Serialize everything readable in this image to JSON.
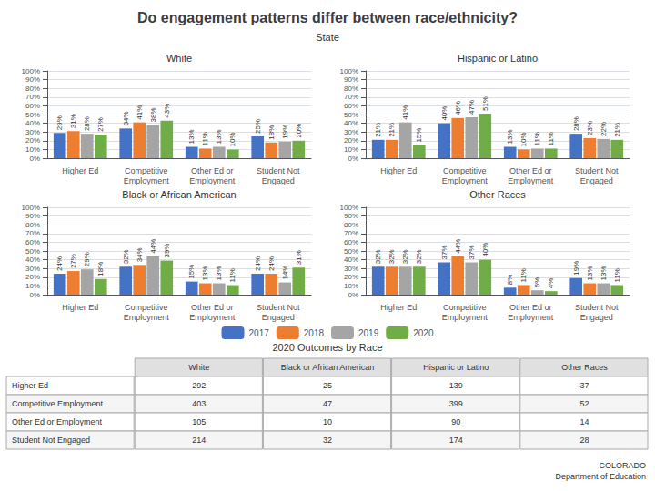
{
  "title": "Do engagement patterns differ between race/ethnicity?",
  "subtitle": "State",
  "chart_data": [
    {
      "type": "bar",
      "title": "White",
      "categories": [
        "Higher Ed",
        "Competitive\nEmployment",
        "Other Ed or\nEmployment",
        "Student Not\nEngaged"
      ],
      "series": [
        {
          "name": "2017",
          "color": "#4472c4",
          "values": [
            29,
            34,
            13,
            25
          ],
          "value_labels": [
            "29%",
            "34%",
            "13%",
            "25%"
          ]
        },
        {
          "name": "2018",
          "color": "#ed7d31",
          "values": [
            31,
            41,
            11,
            18
          ],
          "value_labels": [
            "31%",
            "41%",
            "11%",
            "18%"
          ]
        },
        {
          "name": "2019",
          "color": "#a5a5a5",
          "values": [
            28,
            38,
            13,
            19
          ],
          "value_labels": [
            "28%",
            "38%",
            "13%",
            "19%"
          ]
        },
        {
          "name": "2020",
          "color": "#70ad47",
          "values": [
            27,
            43,
            10,
            20
          ],
          "value_labels": [
            "27%",
            "43%",
            "10%",
            "20%"
          ]
        }
      ],
      "ylim": [
        0,
        100
      ],
      "yticks": [
        {
          "value": 0,
          "label": "0%"
        },
        {
          "value": 10,
          "label": "10%"
        },
        {
          "value": 20,
          "label": "20%"
        },
        {
          "value": 30,
          "label": "30%"
        },
        {
          "value": 40,
          "label": "40%"
        },
        {
          "value": 50,
          "label": "50%"
        },
        {
          "value": 60,
          "label": "60%"
        },
        {
          "value": 70,
          "label": "70%"
        },
        {
          "value": 80,
          "label": "80%"
        },
        {
          "value": 90,
          "label": "90%"
        },
        {
          "value": 100,
          "label": "100%"
        }
      ],
      "grid": true,
      "data_labels": true,
      "legend": "bottom"
    },
    {
      "type": "bar",
      "title": "Hispanic or Latino",
      "categories": [
        "Higher Ed",
        "Competitive\nEmployment",
        "Other Ed or\nEmployment",
        "Student Not\nEngaged"
      ],
      "series": [
        {
          "name": "2017",
          "color": "#4472c4",
          "values": [
            21,
            40,
            13,
            28
          ],
          "value_labels": [
            "21%",
            "40%",
            "13%",
            "28%"
          ]
        },
        {
          "name": "2018",
          "color": "#ed7d31",
          "values": [
            21,
            46,
            10,
            23
          ],
          "value_labels": [
            "21%",
            "46%",
            "10%",
            "23%"
          ]
        },
        {
          "name": "2019",
          "color": "#a5a5a5",
          "values": [
            41,
            47,
            11,
            22
          ],
          "value_labels": [
            "41%",
            "47%",
            "11%",
            "22%"
          ]
        },
        {
          "name": "2020",
          "color": "#70ad47",
          "values": [
            15,
            51,
            11,
            21
          ],
          "value_labels": [
            "15%",
            "51%",
            "11%",
            "21%"
          ]
        }
      ],
      "ylim": [
        0,
        100
      ],
      "yticks": [
        {
          "value": 0,
          "label": "0%"
        },
        {
          "value": 10,
          "label": "10%"
        },
        {
          "value": 20,
          "label": "20%"
        },
        {
          "value": 30,
          "label": "30%"
        },
        {
          "value": 40,
          "label": "40%"
        },
        {
          "value": 50,
          "label": "50%"
        },
        {
          "value": 60,
          "label": "60%"
        },
        {
          "value": 70,
          "label": "70%"
        },
        {
          "value": 80,
          "label": "80%"
        },
        {
          "value": 90,
          "label": "90%"
        },
        {
          "value": 100,
          "label": "100%"
        }
      ],
      "grid": true,
      "data_labels": true
    },
    {
      "type": "bar",
      "title": "Black or African American",
      "categories": [
        "Higher Ed",
        "Competitive\nEmployment",
        "Other Ed or\nEmployment",
        "Student Not\nEngaged"
      ],
      "series": [
        {
          "name": "2017",
          "color": "#4472c4",
          "values": [
            24,
            32,
            15,
            24
          ],
          "value_labels": [
            "24%",
            "32%",
            "15%",
            "24%"
          ]
        },
        {
          "name": "2018",
          "color": "#ed7d31",
          "values": [
            27,
            34,
            13,
            24
          ],
          "value_labels": [
            "27%",
            "34%",
            "13%",
            "24%"
          ]
        },
        {
          "name": "2019",
          "color": "#a5a5a5",
          "values": [
            29,
            44,
            13,
            14
          ],
          "value_labels": [
            "29%",
            "44%",
            "13%",
            "14%"
          ]
        },
        {
          "name": "2020",
          "color": "#70ad47",
          "values": [
            18,
            39,
            11,
            31
          ],
          "value_labels": [
            "18%",
            "39%",
            "11%",
            "31%"
          ]
        }
      ],
      "ylim": [
        0,
        100
      ],
      "yticks": [
        {
          "value": 0,
          "label": "0%"
        },
        {
          "value": 10,
          "label": "10%"
        },
        {
          "value": 20,
          "label": "20%"
        },
        {
          "value": 30,
          "label": "30%"
        },
        {
          "value": 40,
          "label": "40%"
        },
        {
          "value": 50,
          "label": "50%"
        },
        {
          "value": 60,
          "label": "60%"
        },
        {
          "value": 70,
          "label": "70%"
        },
        {
          "value": 80,
          "label": "80%"
        },
        {
          "value": 90,
          "label": "90%"
        },
        {
          "value": 100,
          "label": "100%"
        }
      ],
      "grid": true,
      "data_labels": true
    },
    {
      "type": "bar",
      "title": "Other Races",
      "categories": [
        "Higher Ed",
        "Competitive\nEmployment",
        "Other Ed or\nEmployment",
        "Student Not\nEngaged"
      ],
      "series": [
        {
          "name": "2017",
          "color": "#4472c4",
          "values": [
            32,
            37,
            8,
            19
          ],
          "value_labels": [
            "32%",
            "37%",
            "8%",
            "19%"
          ]
        },
        {
          "name": "2018",
          "color": "#ed7d31",
          "values": [
            32,
            44,
            11,
            13
          ],
          "value_labels": [
            "32%",
            "44%",
            "11%",
            "13%"
          ]
        },
        {
          "name": "2019",
          "color": "#a5a5a5",
          "values": [
            32,
            37,
            5,
            13
          ],
          "value_labels": [
            "32%",
            "37%",
            "5%",
            "13%"
          ]
        },
        {
          "name": "2020",
          "color": "#70ad47",
          "values": [
            32,
            40,
            4,
            11
          ],
          "value_labels": [
            "32%",
            "40%",
            "4%",
            "11%"
          ]
        }
      ],
      "ylim": [
        0,
        100
      ],
      "yticks": [
        {
          "value": 0,
          "label": "0%"
        },
        {
          "value": 10,
          "label": "10%"
        },
        {
          "value": 20,
          "label": "20%"
        },
        {
          "value": 30,
          "label": "30%"
        },
        {
          "value": 40,
          "label": "40%"
        },
        {
          "value": 50,
          "label": "50%"
        },
        {
          "value": 60,
          "label": "60%"
        },
        {
          "value": 70,
          "label": "70%"
        },
        {
          "value": 80,
          "label": "80%"
        },
        {
          "value": 90,
          "label": "90%"
        },
        {
          "value": 100,
          "label": "100%"
        }
      ],
      "grid": true,
      "data_labels": true
    }
  ],
  "table": {
    "title": "2020 Outcomes by Race",
    "columns": [
      "White",
      "Black or African American",
      "Hispanic or Latino",
      "Other Races"
    ],
    "rows": [
      {
        "label": "Higher Ed",
        "values": [
          292,
          25,
          139,
          37
        ]
      },
      {
        "label": "Competitive Employment",
        "values": [
          403,
          47,
          399,
          52
        ]
      },
      {
        "label": "Other Ed or Employment",
        "values": [
          105,
          10,
          90,
          14
        ]
      },
      {
        "label": "Student Not Engaged",
        "values": [
          214,
          32,
          174,
          28
        ]
      }
    ]
  },
  "annotations": [
    "COLORADO\nDepartment of Education"
  ]
}
